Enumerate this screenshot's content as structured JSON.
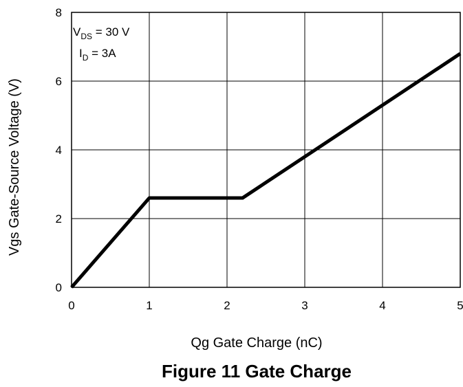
{
  "chart_data": {
    "type": "line",
    "title": "Figure 11 Gate Charge",
    "xlabel": "Qg Gate Charge (nC)",
    "ylabel": "Vgs Gate-Source Voltage (V)",
    "xlim": [
      0,
      5
    ],
    "ylim": [
      0,
      8
    ],
    "x_ticks": [
      "0",
      "1",
      "2",
      "3",
      "4",
      "5"
    ],
    "y_ticks": [
      "0",
      "2",
      "4",
      "6",
      "8"
    ],
    "grid": true,
    "series": [
      {
        "x": [
          0,
          1.0,
          2.2,
          5.0
        ],
        "y": [
          0,
          2.6,
          2.6,
          6.8
        ],
        "color": "#000000"
      }
    ],
    "annotations": {
      "vds": {
        "base": "V",
        "sub": "DS",
        "text": " = 30 V"
      },
      "id": {
        "base": "I",
        "sub": "D",
        "text": " =  3A"
      }
    }
  }
}
